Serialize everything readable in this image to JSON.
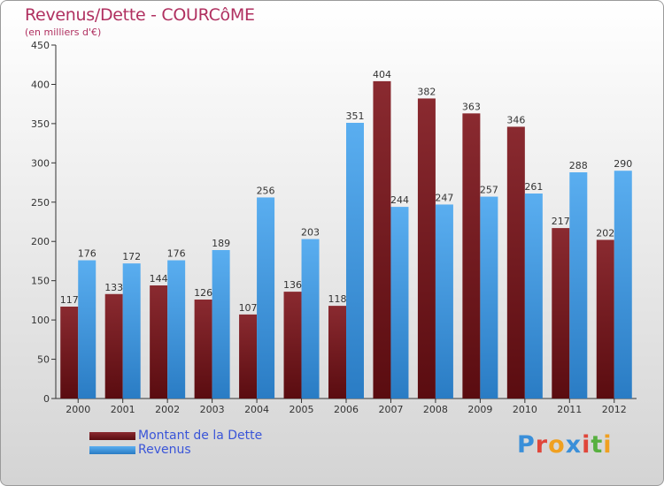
{
  "title": "Revenus/Dette - COURCôME",
  "subtitle": "(en milliers d'€)",
  "logo": {
    "text": "Proxiti",
    "letter_colors": [
      "#3a8fd9",
      "#e0463a",
      "#f0a020",
      "#3a8fd9",
      "#e0463a",
      "#58b040",
      "#f0a020"
    ]
  },
  "chart_data": {
    "type": "bar",
    "title": "Revenus/Dette - COURCôME",
    "ylabel": "(en milliers d'€)",
    "categories": [
      "2000",
      "2001",
      "2002",
      "2003",
      "2004",
      "2005",
      "2006",
      "2007",
      "2008",
      "2009",
      "2010",
      "2011",
      "2012"
    ],
    "series": [
      {
        "name": "Montant de la Dette",
        "color": "#7a2228",
        "values": [
          117,
          133,
          144,
          126,
          107,
          136,
          118,
          404,
          382,
          363,
          346,
          217,
          202
        ]
      },
      {
        "name": "Revenus",
        "color": "#4a9fe0",
        "values": [
          176,
          172,
          176,
          189,
          256,
          203,
          351,
          244,
          247,
          257,
          261,
          288,
          290
        ]
      }
    ],
    "ylim": [
      0,
      450
    ],
    "yticks": [
      0,
      50,
      100,
      150,
      200,
      250,
      300,
      350,
      400,
      450
    ],
    "grid": false,
    "legend_position": "bottom-left"
  }
}
